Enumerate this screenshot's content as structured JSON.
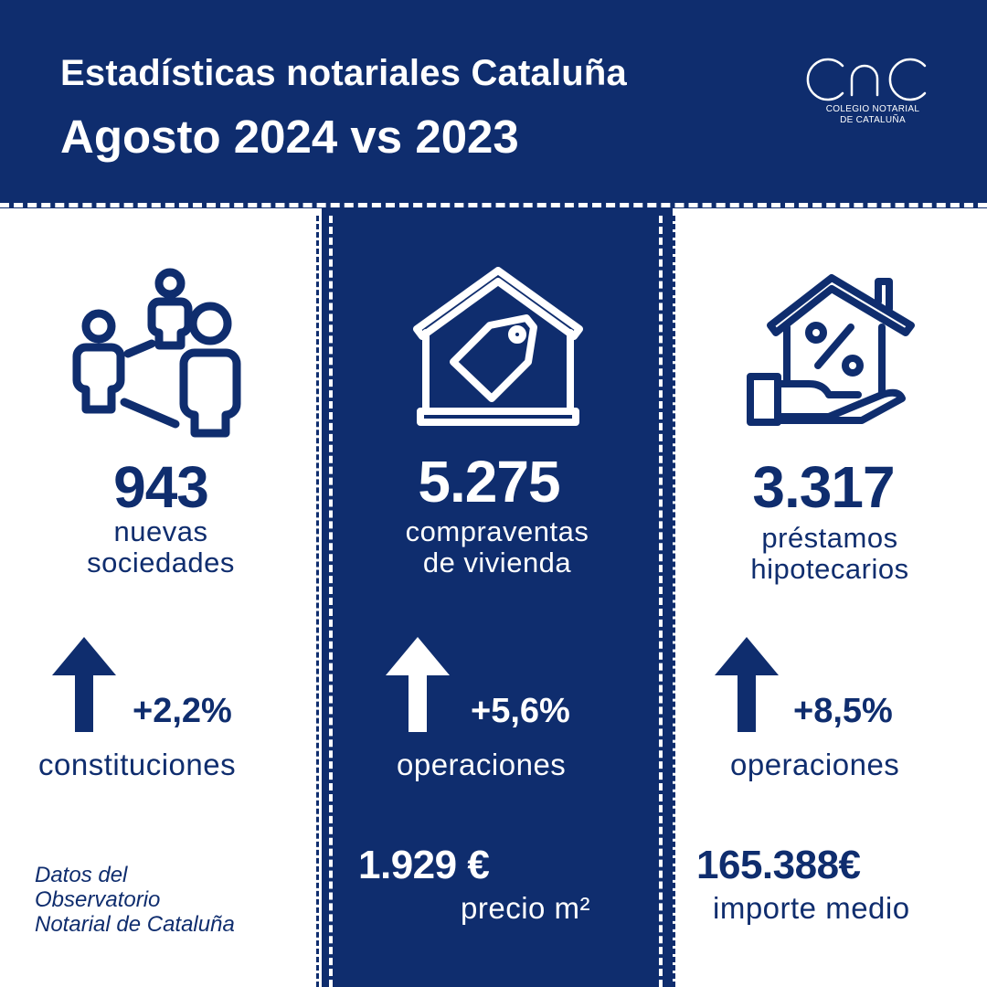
{
  "header": {
    "title": "Estadísticas notariales Cataluña",
    "subtitle": "Agosto 2024 vs 2023",
    "logo_text_line1": "COLEGIO NOTARIAL",
    "logo_text_line2": "DE CATALUÑA",
    "logo_icon": "cnc-logo-icon"
  },
  "columns": [
    {
      "icon": "people-network-icon",
      "value": "943",
      "label_line1": "nuevas",
      "label_line2": "sociedades",
      "trend_icon": "arrow-up-icon",
      "change": "+2,2%",
      "change_label": "constituciones"
    },
    {
      "icon": "house-price-tag-icon",
      "value": "5.275",
      "label_line1": "compraventas",
      "label_line2": "de vivienda",
      "trend_icon": "arrow-up-icon",
      "change": "+5,6%",
      "change_label": "operaciones",
      "extra_value": "1.929 €",
      "extra_label": "precio m²"
    },
    {
      "icon": "house-percent-hand-icon",
      "value": "3.317",
      "label_line1": "préstamos",
      "label_line2": "hipotecarios",
      "trend_icon": "arrow-up-icon",
      "change": "+8,5%",
      "change_label": "operaciones",
      "extra_value": "165.388€",
      "extra_label": "importe medio"
    }
  ],
  "source": "Datos del Observatorio Notarial de Cataluña",
  "colors": {
    "navy": "#0f2d6e",
    "white": "#ffffff"
  }
}
